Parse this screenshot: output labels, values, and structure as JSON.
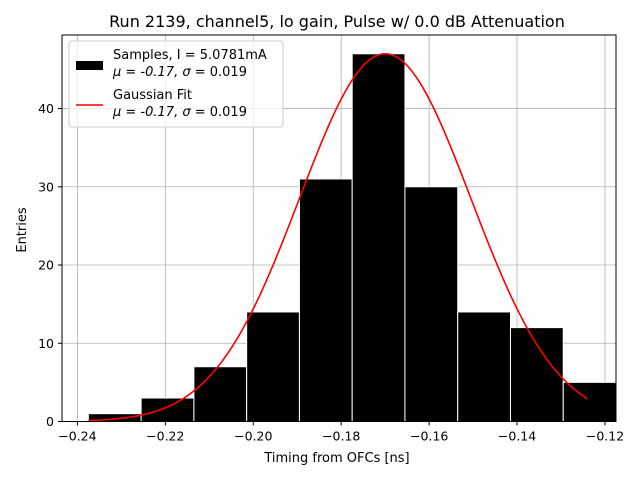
{
  "chart_data": {
    "type": "bar",
    "title": "Run 2139, channel5, lo gain, Pulse w/ 0.0 dB Attenuation",
    "xlabel": "Timing from OFCs [ns]",
    "ylabel": "Entries",
    "xlim": [
      -0.2435,
      -0.1175
    ],
    "ylim": [
      0,
      49.4
    ],
    "grid": true,
    "x_ticks": [
      -0.24,
      -0.22,
      -0.2,
      -0.18,
      -0.16,
      -0.14,
      -0.12
    ],
    "x_tick_labels": [
      "−0.24",
      "−0.22",
      "−0.20",
      "−0.18",
      "−0.16",
      "−0.14",
      "−0.12"
    ],
    "y_ticks": [
      0,
      10,
      20,
      30,
      40
    ],
    "y_tick_labels": [
      "0",
      "10",
      "20",
      "30",
      "40"
    ],
    "bar_color": "#000000",
    "bar_edge_color": "#ffffff",
    "fit_color": "#ff0000",
    "bins": [
      {
        "left": -0.2375,
        "right": -0.2255,
        "count": 1
      },
      {
        "left": -0.2255,
        "right": -0.2135,
        "count": 3
      },
      {
        "left": -0.2135,
        "right": -0.2015,
        "count": 7
      },
      {
        "left": -0.2015,
        "right": -0.1895,
        "count": 14
      },
      {
        "left": -0.1895,
        "right": -0.1775,
        "count": 31
      },
      {
        "left": -0.1775,
        "right": -0.1655,
        "count": 47
      },
      {
        "left": -0.1655,
        "right": -0.1535,
        "count": 30
      },
      {
        "left": -0.1535,
        "right": -0.1415,
        "count": 14
      },
      {
        "left": -0.1415,
        "right": -0.1295,
        "count": 12
      },
      {
        "left": -0.1295,
        "right": -0.1175,
        "count": 5
      }
    ],
    "gaussian_fit": {
      "amplitude": 47,
      "mu": -0.17,
      "sigma": 0.0195,
      "x_range": [
        -0.2375,
        -0.124
      ]
    },
    "legend": {
      "position": "top-left",
      "entries": [
        {
          "kind": "patch",
          "line1": "Samples, I = 5.0781mA",
          "line2_prefix": "μ = -0.17, ",
          "line2_sigma": "σ",
          "line2_suffix": " = 0.019"
        },
        {
          "kind": "line",
          "line1": "Gaussian Fit",
          "line2_prefix": "μ = -0.17, ",
          "line2_sigma": "σ",
          "line2_suffix": " = 0.019"
        }
      ]
    }
  }
}
